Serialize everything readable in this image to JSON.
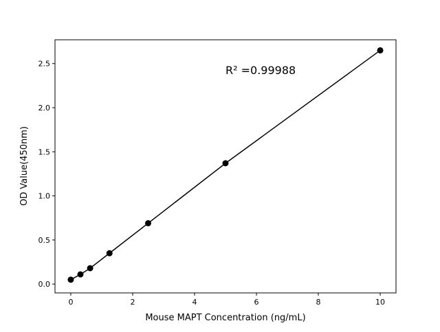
{
  "chart_data": {
    "type": "line",
    "title": "",
    "xlabel": "Mouse MAPT Concentration (ng/mL)",
    "ylabel": "OD Value(450nm)",
    "annotation": "R² =0.99988",
    "xlim": [
      -0.51,
      10.51
    ],
    "ylim": [
      -0.1,
      2.77
    ],
    "xticks": [
      0,
      2,
      4,
      6,
      8,
      10
    ],
    "yticks": [
      0.0,
      0.5,
      1.0,
      1.5,
      2.0,
      2.5
    ],
    "xtick_labels": [
      "0",
      "2",
      "4",
      "6",
      "8",
      "10"
    ],
    "ytick_labels": [
      "0.0",
      "0.5",
      "1.0",
      "1.5",
      "2.0",
      "2.5"
    ],
    "grid": false,
    "color": "#000000",
    "series": [
      {
        "x": [
          0,
          0.3125,
          0.625,
          1.25,
          2.5,
          5,
          10
        ],
        "y": [
          0.05,
          0.11,
          0.18,
          0.35,
          0.69,
          1.37,
          2.65
        ]
      }
    ]
  }
}
